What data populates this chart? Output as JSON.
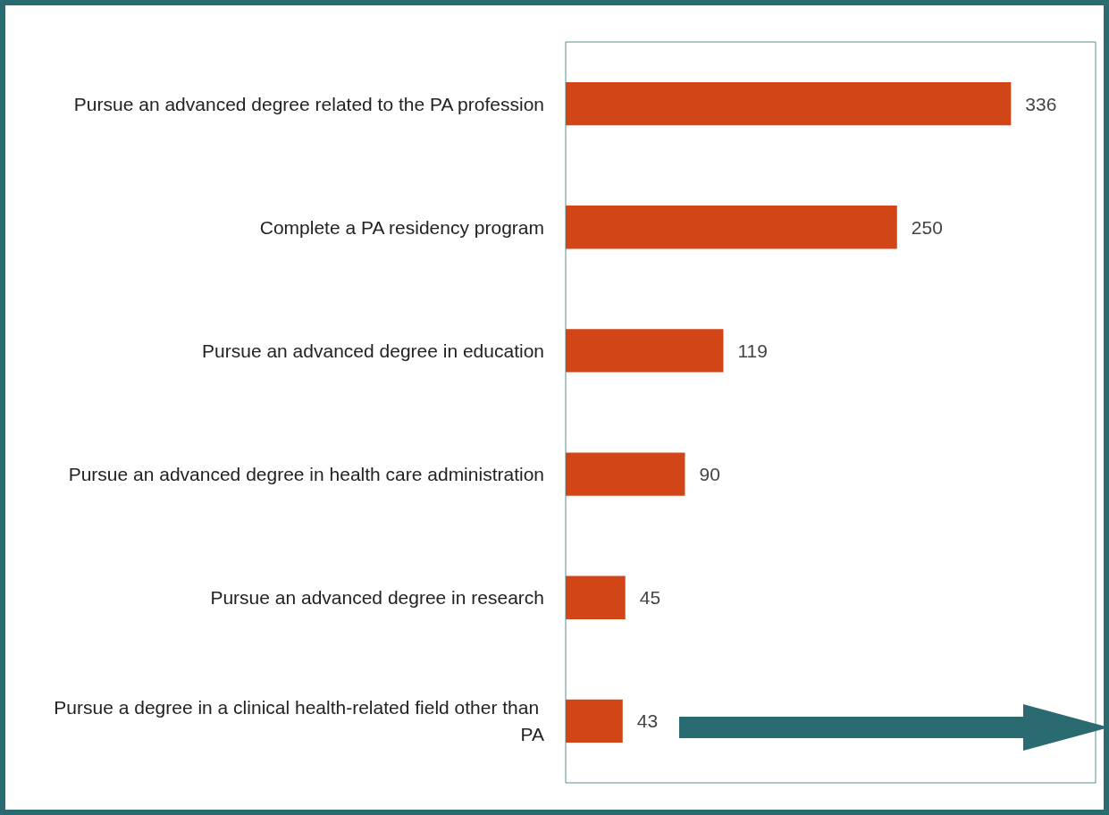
{
  "chart_data": {
    "type": "bar",
    "orientation": "horizontal",
    "categories": [
      "Pursue an advanced degree related to the PA profession",
      "Complete a PA residency program",
      "Pursue an advanced degree in education",
      "Pursue an advanced degree in health care administration",
      "Pursue an advanced degree in research",
      "Pursue a degree in a clinical health-related field other than PA"
    ],
    "values": [
      336,
      250,
      119,
      90,
      45,
      43
    ],
    "color": "#d24516",
    "data_labels": true
  }
}
